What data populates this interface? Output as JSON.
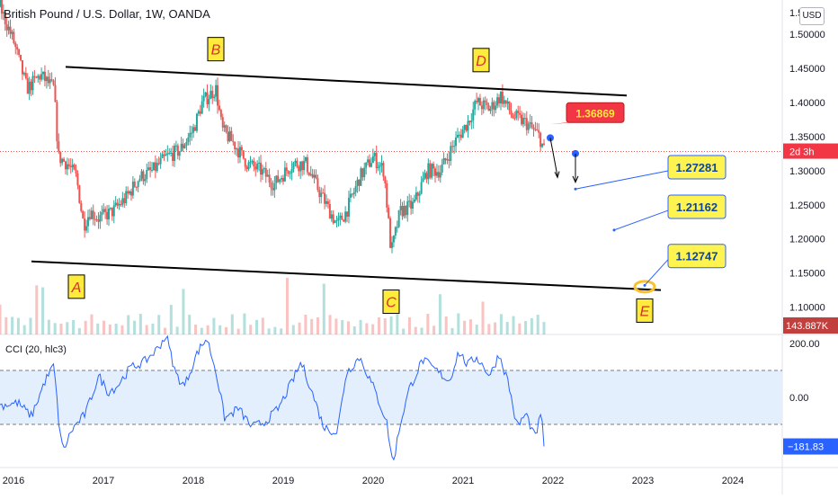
{
  "chart_title": "British Pound / U.S. Dollar, 1W, OANDA",
  "currency_badge": "USD",
  "colors": {
    "up": "#26a69a",
    "down": "#ef5350",
    "line": "#000000",
    "cci": "#2962ff",
    "cci_band": "#e3effd",
    "label_yellow": "#ffeb3b",
    "label_red": "#f23645",
    "callout_yellow": "#fff44f",
    "callout_border": "#2962ff"
  },
  "chart_data": [
    {
      "type": "candlestick",
      "title": "British Pound / U.S. Dollar, 1W, OANDA",
      "x_ticks": [
        "2016",
        "2017",
        "2018",
        "2019",
        "2020",
        "2021",
        "2022",
        "2023",
        "2024"
      ],
      "x_range": [
        2015.85,
        2024.55
      ],
      "y_ticks": [
        1.1,
        1.15,
        1.2,
        1.25,
        1.3,
        1.35,
        1.4,
        1.45,
        1.5
      ],
      "y_tick_labels": [
        "1.10000",
        "1.15000",
        "1.20000",
        "1.25000",
        "1.30000",
        "1.35000",
        "1.40000",
        "1.45000",
        "1.50000"
      ],
      "y_range": [
        1.06,
        1.55
      ],
      "top_partial_tick": "1.5",
      "last_price_label": "2d 3h",
      "last_price": 1.328,
      "volume_label": "143.887K",
      "price_path": [
        [
          2015.85,
          1.54
        ],
        [
          2016.0,
          1.49
        ],
        [
          2016.15,
          1.42
        ],
        [
          2016.3,
          1.44
        ],
        [
          2016.45,
          1.42
        ],
        [
          2016.5,
          1.32
        ],
        [
          2016.6,
          1.31
        ],
        [
          2016.7,
          1.29
        ],
        [
          2016.78,
          1.22
        ],
        [
          2016.85,
          1.24
        ],
        [
          2016.95,
          1.23
        ],
        [
          2017.1,
          1.24
        ],
        [
          2017.25,
          1.26
        ],
        [
          2017.4,
          1.29
        ],
        [
          2017.55,
          1.3
        ],
        [
          2017.7,
          1.32
        ],
        [
          2017.85,
          1.33
        ],
        [
          2018.0,
          1.36
        ],
        [
          2018.1,
          1.4
        ],
        [
          2018.25,
          1.42
        ],
        [
          2018.32,
          1.36
        ],
        [
          2018.45,
          1.34
        ],
        [
          2018.6,
          1.31
        ],
        [
          2018.75,
          1.3
        ],
        [
          2018.9,
          1.28
        ],
        [
          2019.1,
          1.31
        ],
        [
          2019.25,
          1.31
        ],
        [
          2019.4,
          1.27
        ],
        [
          2019.6,
          1.22
        ],
        [
          2019.7,
          1.24
        ],
        [
          2019.85,
          1.29
        ],
        [
          2020.0,
          1.32
        ],
        [
          2020.12,
          1.3
        ],
        [
          2020.2,
          1.18
        ],
        [
          2020.3,
          1.24
        ],
        [
          2020.45,
          1.25
        ],
        [
          2020.6,
          1.3
        ],
        [
          2020.75,
          1.3
        ],
        [
          2020.9,
          1.34
        ],
        [
          2021.05,
          1.37
        ],
        [
          2021.15,
          1.4
        ],
        [
          2021.3,
          1.39
        ],
        [
          2021.42,
          1.41
        ],
        [
          2021.55,
          1.38
        ],
        [
          2021.7,
          1.37
        ],
        [
          2021.85,
          1.35
        ],
        [
          2021.9,
          1.33
        ]
      ],
      "cci_label": "CCI (20, hlc3)",
      "cci_ticks": [
        200.0,
        0.0
      ],
      "cci_tick_labels": [
        "200.00",
        "0.00"
      ],
      "cci_band": [
        100,
        -100
      ],
      "cci_range": [
        -260,
        230
      ],
      "cci_last": -181.83,
      "cci_last_label": "−181.83",
      "cci_path": [
        [
          2015.85,
          -30
        ],
        [
          2016.05,
          -20
        ],
        [
          2016.2,
          -70
        ],
        [
          2016.35,
          60
        ],
        [
          2016.45,
          120
        ],
        [
          2016.5,
          -80
        ],
        [
          2016.55,
          -200
        ],
        [
          2016.65,
          -120
        ],
        [
          2016.8,
          -60
        ],
        [
          2016.95,
          80
        ],
        [
          2017.05,
          20
        ],
        [
          2017.15,
          40
        ],
        [
          2017.3,
          110
        ],
        [
          2017.45,
          130
        ],
        [
          2017.6,
          180
        ],
        [
          2017.7,
          230
        ],
        [
          2017.8,
          90
        ],
        [
          2017.9,
          40
        ],
        [
          2018.05,
          170
        ],
        [
          2018.15,
          220
        ],
        [
          2018.25,
          100
        ],
        [
          2018.35,
          -80
        ],
        [
          2018.5,
          -40
        ],
        [
          2018.65,
          -110
        ],
        [
          2018.8,
          -90
        ],
        [
          2018.95,
          -40
        ],
        [
          2019.1,
          60
        ],
        [
          2019.2,
          130
        ],
        [
          2019.3,
          40
        ],
        [
          2019.45,
          -110
        ],
        [
          2019.6,
          -130
        ],
        [
          2019.7,
          90
        ],
        [
          2019.85,
          150
        ],
        [
          2020.0,
          40
        ],
        [
          2020.15,
          -90
        ],
        [
          2020.22,
          -250
        ],
        [
          2020.3,
          -100
        ],
        [
          2020.4,
          30
        ],
        [
          2020.55,
          140
        ],
        [
          2020.7,
          100
        ],
        [
          2020.85,
          60
        ],
        [
          2020.95,
          170
        ],
        [
          2021.05,
          120
        ],
        [
          2021.15,
          150
        ],
        [
          2021.3,
          80
        ],
        [
          2021.4,
          160
        ],
        [
          2021.5,
          60
        ],
        [
          2021.6,
          -110
        ],
        [
          2021.7,
          -60
        ],
        [
          2021.8,
          -150
        ],
        [
          2021.87,
          -60
        ],
        [
          2021.9,
          -182
        ]
      ],
      "volume_bars": 90,
      "wave_labels": [
        {
          "text": "A",
          "x": 2016.7,
          "y": 1.13,
          "anchor_y": 1.163
        },
        {
          "text": "B",
          "x": 2018.25,
          "y": 1.478,
          "anchor_y": 1.445
        },
        {
          "text": "C",
          "x": 2020.2,
          "y": 1.108,
          "anchor_y": 1.145
        },
        {
          "text": "D",
          "x": 2021.2,
          "y": 1.462,
          "anchor_y": 1.428
        },
        {
          "text": "E",
          "x": 2023.02,
          "y": 1.095,
          "anchor_y": 1.13
        }
      ],
      "trend_lines": [
        {
          "x1": 2016.58,
          "y1": 1.452,
          "x2": 2022.82,
          "y2": 1.41
        },
        {
          "x1": 2016.2,
          "y1": 1.167,
          "x2": 2023.2,
          "y2": 1.125
        }
      ],
      "annotations": [
        {
          "text": "1.36869",
          "kind": "red",
          "x": 2022.47,
          "y": 1.385,
          "pointer_x": 2021.97,
          "pointer_y": 1.368
        },
        {
          "text": "1.27281",
          "kind": "yellow",
          "x": 2023.6,
          "y": 1.305,
          "pointer_x": 2022.25,
          "pointer_y": 1.273
        },
        {
          "text": "1.21162",
          "kind": "yellow",
          "x": 2023.6,
          "y": 1.247,
          "pointer_x": 2022.68,
          "pointer_y": 1.213
        },
        {
          "text": "1.12747",
          "kind": "yellow",
          "x": 2023.6,
          "y": 1.175,
          "pointer_x": 2023.02,
          "pointer_y": 1.132
        }
      ]
    }
  ]
}
